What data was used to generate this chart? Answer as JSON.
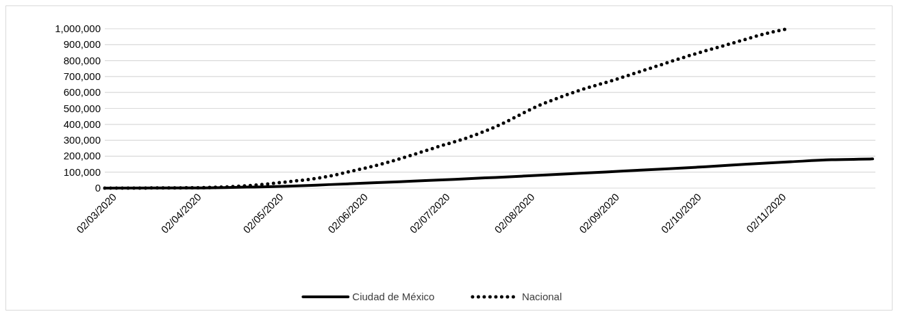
{
  "chart_data": {
    "type": "line",
    "xlim": [
      "2020-02-28",
      "2020-12-06"
    ],
    "xticks": [
      {
        "value": "2020-03-02",
        "label": "02/03/2020"
      },
      {
        "value": "2020-04-02",
        "label": "02/04/2020"
      },
      {
        "value": "2020-05-02",
        "label": "02/05/2020"
      },
      {
        "value": "2020-06-02",
        "label": "02/06/2020"
      },
      {
        "value": "2020-07-02",
        "label": "02/07/2020"
      },
      {
        "value": "2020-08-02",
        "label": "02/08/2020"
      },
      {
        "value": "2020-09-02",
        "label": "02/09/2020"
      },
      {
        "value": "2020-10-02",
        "label": "02/10/2020"
      },
      {
        "value": "2020-11-02",
        "label": "02/11/2020"
      }
    ],
    "ylim": [
      0,
      1000000
    ],
    "yticks": [
      0,
      {
        "value": 100000,
        "label": "100,000"
      },
      {
        "value": 200000,
        "label": "200,000"
      },
      {
        "value": 300000,
        "label": "300,000"
      },
      {
        "value": 400000,
        "label": "400,000"
      },
      {
        "value": 500000,
        "label": "500,000"
      },
      {
        "value": 600000,
        "label": "600,000"
      },
      {
        "value": 700000,
        "label": "700,000"
      },
      {
        "value": 800000,
        "label": "800,000"
      },
      {
        "value": 900000,
        "label": "900,000"
      },
      {
        "value": 1000000,
        "label": "1,000,000"
      }
    ],
    "grid": "y",
    "legend": "bottom",
    "series": [
      {
        "name": "Ciudad de México",
        "color": "#000000",
        "line_style": "solid",
        "x": [
          "2020-02-28",
          "2020-04-01",
          "2020-04-20",
          "2020-05-05",
          "2020-05-20",
          "2020-06-05",
          "2020-06-20",
          "2020-07-05",
          "2020-07-20",
          "2020-08-05",
          "2020-08-20",
          "2020-09-05",
          "2020-09-20",
          "2020-10-05",
          "2020-10-20",
          "2020-11-05",
          "2020-11-20",
          "2020-12-05"
        ],
        "values": [
          0,
          1000,
          6000,
          12000,
          22000,
          33000,
          44000,
          55000,
          67000,
          80000,
          93000,
          107000,
          120000,
          134000,
          150000,
          165000,
          178000,
          183000
        ]
      },
      {
        "name": "Nacional",
        "color": "#000000",
        "line_style": "dotted",
        "x": [
          "2020-02-28",
          "2020-03-20",
          "2020-04-04",
          "2020-04-13",
          "2020-04-24",
          "2020-05-05",
          "2020-05-17",
          "2020-05-28",
          "2020-06-08",
          "2020-06-18",
          "2020-06-29",
          "2020-07-10",
          "2020-07-20",
          "2020-08-05",
          "2020-08-19",
          "2020-09-02",
          "2020-09-16",
          "2020-09-30",
          "2020-10-14",
          "2020-10-28",
          "2020-11-04"
        ],
        "values": [
          0,
          1000,
          3000,
          8000,
          20000,
          40000,
          65000,
          105000,
          150000,
          200000,
          260000,
          318000,
          385000,
          519000,
          609000,
          682000,
          760000,
          837000,
          906000,
          974000,
          1000000
        ]
      }
    ]
  }
}
